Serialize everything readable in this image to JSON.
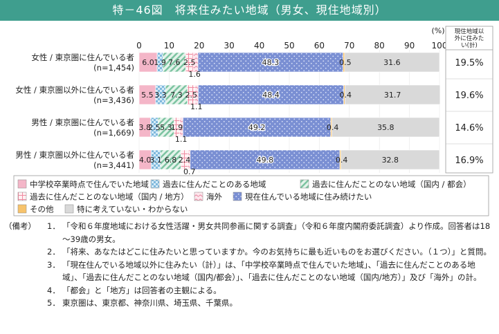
{
  "title": "特－46図　将来住みたい地域（男女、現住地域別）",
  "colors": {
    "title_bg": "#3f9e8e",
    "s0": "#f4b6c8",
    "s1": "#b9dbef",
    "s2": "#cbe8da",
    "s3": "#fde3e6",
    "s4": "#fbd0dc",
    "s5": "#7f92d2",
    "s6": "#f7c36b",
    "s7": "#d9d9d9"
  },
  "chart_data": {
    "type": "bar",
    "orientation": "horizontal",
    "stacked": true,
    "unit": "(%)",
    "xlim": [
      0,
      100
    ],
    "xticks": [
      "0",
      "10",
      "20",
      "30",
      "40",
      "50",
      "60",
      "70",
      "80",
      "90",
      "100"
    ],
    "categories": [
      "女性 / 東京圏に住んでいる者\n(n=1,454)",
      "女性 / 東京圏以外に住んでいる者\n(n=3,436)",
      "男性 / 東京圏に住んでいる者\n(n=1,669)",
      "男性 / 東京圏以外に住んでいる者\n(n=3,441)"
    ],
    "series": [
      {
        "name": "中学校卒業時点で住んでいた地域",
        "values": [
          6.0,
          5.5,
          3.8,
          4.0
        ],
        "labels": [
          "6.0",
          "5.5",
          "3.8",
          "4.0"
        ]
      },
      {
        "name": "過去に住んだことのある地域",
        "values": [
          1.9,
          3.3,
          2.5,
          3.1
        ],
        "labels": [
          "1.9",
          "3.3",
          "2.5",
          "3.1"
        ]
      },
      {
        "name": "過去に住んだことのない地域（国内 / 都会）",
        "values": [
          7.6,
          7.3,
          5.3,
          6.8
        ],
        "labels": [
          "7.6",
          "7.3",
          "5.3",
          "6.8"
        ]
      },
      {
        "name": "過去に住んだことのない地域（国内 / 地方）",
        "values": [
          2.5,
          2.5,
          1.9,
          2.4
        ],
        "labels": [
          "2.5",
          "2.5",
          "1.9",
          "2.4"
        ]
      },
      {
        "name": "海外",
        "values": [
          1.6,
          1.1,
          1.1,
          0.7
        ],
        "labels": [
          "1.6",
          "1.1",
          "1.1",
          "0.7"
        ]
      },
      {
        "name": "現在住んでいる地域に住み続けたい",
        "values": [
          48.3,
          48.4,
          49.2,
          49.8
        ],
        "labels": [
          "48.3",
          "48.4",
          "49.2",
          "49.8"
        ]
      },
      {
        "name": "その他",
        "values": [
          0.5,
          0.4,
          0.4,
          0.4
        ],
        "labels": [
          "0.5",
          "0.4",
          "0.4",
          "0.4"
        ]
      },
      {
        "name": "特に考えていない・わからない",
        "values": [
          31.6,
          31.7,
          35.8,
          32.8
        ],
        "labels": [
          "31.6",
          "31.7",
          "35.8",
          "32.8"
        ]
      }
    ],
    "side_column": {
      "header": "現住地域以外に住みたい(計)",
      "values": [
        "19.5%",
        "19.6%",
        "14.6%",
        "16.9%"
      ]
    },
    "legend_position": "bottom"
  },
  "notes": {
    "header": "（備考）",
    "items": [
      {
        "num": "1．",
        "text": "「令和６年度地域における女性活躍・男女共同参画に関する調査」（令和６年度内閣府委託調査）より作成。回答者は18～39歳の男女。"
      },
      {
        "num": "2．",
        "text": "「将来、あなたはどこに住みたいと思っていますか。今のお気持ちに最も近いものをお選びください。（１つ）」と質問。"
      },
      {
        "num": "3．",
        "text": "「現在住んでいる地域以外に住みたい（計）」は、「中学校卒業時点で住んでいた地域」、「過去に住んだことのある地域」、「過去に住んだことのない地域（国内/都会）」、「過去に住んだことのない地域（国内/地方）」及び「海外」の計。"
      },
      {
        "num": "4．",
        "text": "「都会」と「地方」は回答者の主観による。"
      },
      {
        "num": "5．",
        "text": "東京圏は、東京都、神奈川県、埼玉県、千葉県。"
      }
    ]
  }
}
